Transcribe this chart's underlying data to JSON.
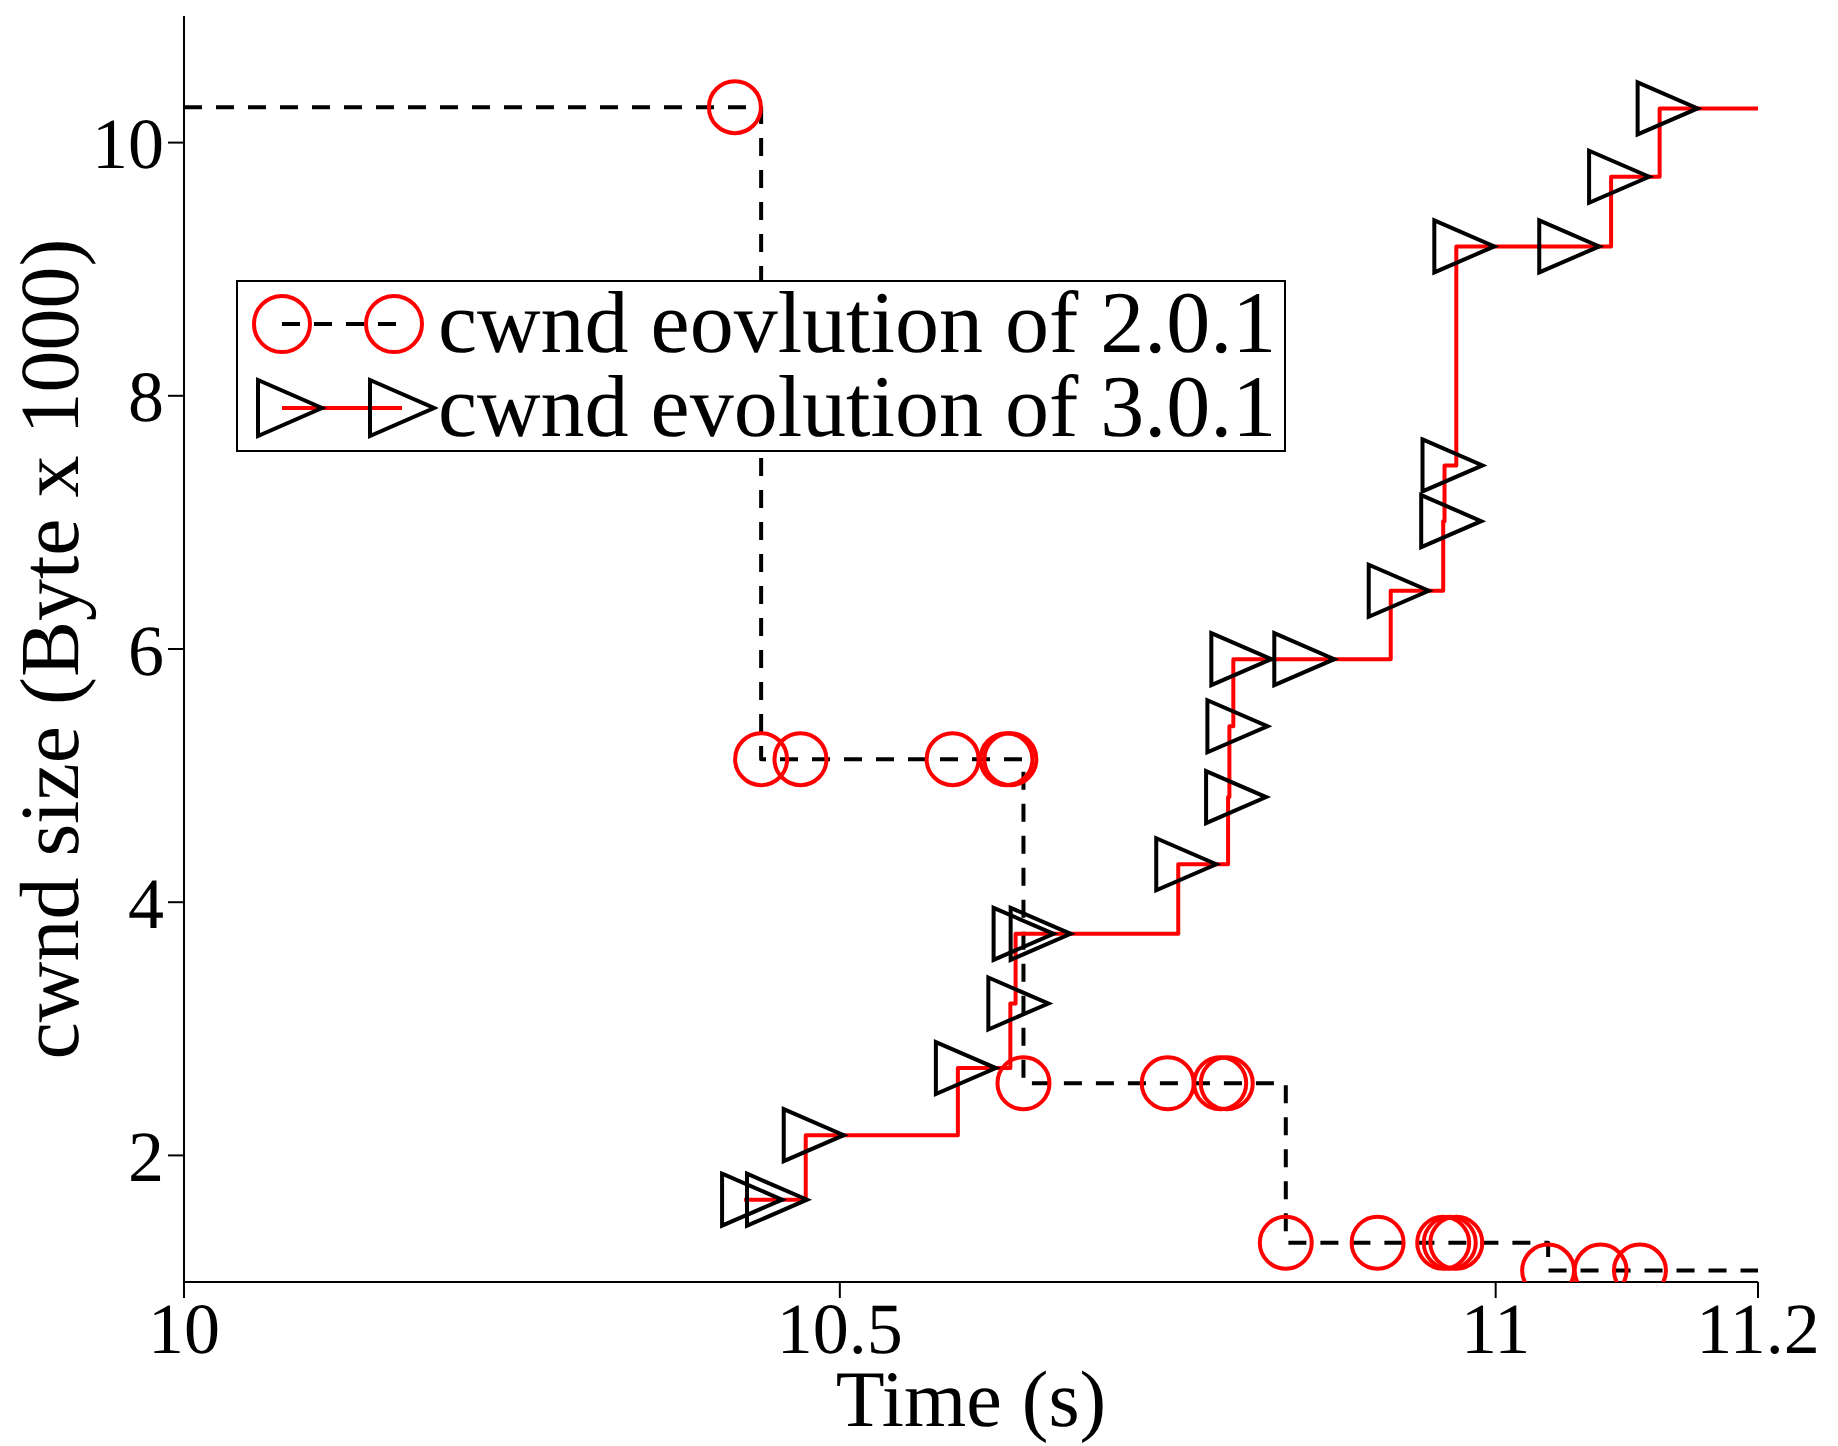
{
  "chart_data": {
    "type": "step",
    "xlabel": "Time (s)",
    "ylabel": "cwnd size (Byte x 1000)",
    "xlim": [
      10,
      11.2
    ],
    "xticks": [
      10,
      10.5,
      11,
      11.2
    ],
    "ylim": [
      1,
      11
    ],
    "yticks": [
      2,
      4,
      6,
      8,
      10
    ],
    "grid": false,
    "legend": "top left",
    "series": [
      {
        "name": "cwnd eovlution of 2.0.1",
        "color": "#000000",
        "line_style": "dashed",
        "marker": "circle",
        "x": [
          10,
          10.42,
          10.44,
          10.47,
          10.586,
          10.627,
          10.63,
          10.64,
          10.75,
          10.79,
          10.795,
          10.84,
          10.91,
          10.96,
          10.965,
          10.97,
          11.04,
          11.08,
          11.11,
          11.2
        ],
        "values": [
          10.28,
          10.28,
          5.13,
          5.13,
          5.13,
          5.13,
          5.13,
          2.57,
          2.57,
          2.57,
          2.57,
          1.31,
          1.31,
          1.31,
          1.31,
          1.31,
          1.09,
          1.09,
          1.09,
          1.09
        ],
        "colors": [
          null,
          "#ff0000",
          "#ff0000",
          "#ff0000",
          "#ff0000",
          "#ff0000",
          "#ff0000",
          "#ff0000",
          "#ff0000",
          "#ff0000",
          "#ff0000",
          "#ff0000",
          "#ff0000",
          "#ff0000",
          "#ff0000",
          "#ff0000",
          "#ff0000",
          "#ff0000",
          "#ff0000",
          null
        ]
      },
      {
        "name": "cwnd evolution of 3.0.1",
        "color": "#ff0000",
        "line_style": "solid",
        "marker": "triangle",
        "x": [
          10.427,
          10.446,
          10.474,
          10.59,
          10.63,
          10.634,
          10.647,
          10.758,
          10.796,
          10.797,
          10.8,
          10.848,
          10.92,
          10.96,
          10.961,
          10.97,
          11.05,
          11.088,
          11.125,
          11.2
        ],
        "values": [
          1.65,
          1.65,
          2.16,
          2.69,
          3.2,
          3.75,
          3.75,
          4.3,
          4.83,
          5.39,
          5.92,
          5.92,
          6.46,
          7.01,
          7.45,
          9.18,
          9.18,
          9.73,
          10.27,
          10.27
        ],
        "colors": [
          "#000000",
          "#000000",
          "#000000",
          "#000000",
          "#000000",
          "#000000",
          "#000000",
          "#000000",
          "#000000",
          "#000000",
          "#000000",
          "#000000",
          "#000000",
          "#000000",
          "#000000",
          "#000000",
          "#000000",
          "#000000",
          "#000000",
          null
        ]
      }
    ]
  }
}
